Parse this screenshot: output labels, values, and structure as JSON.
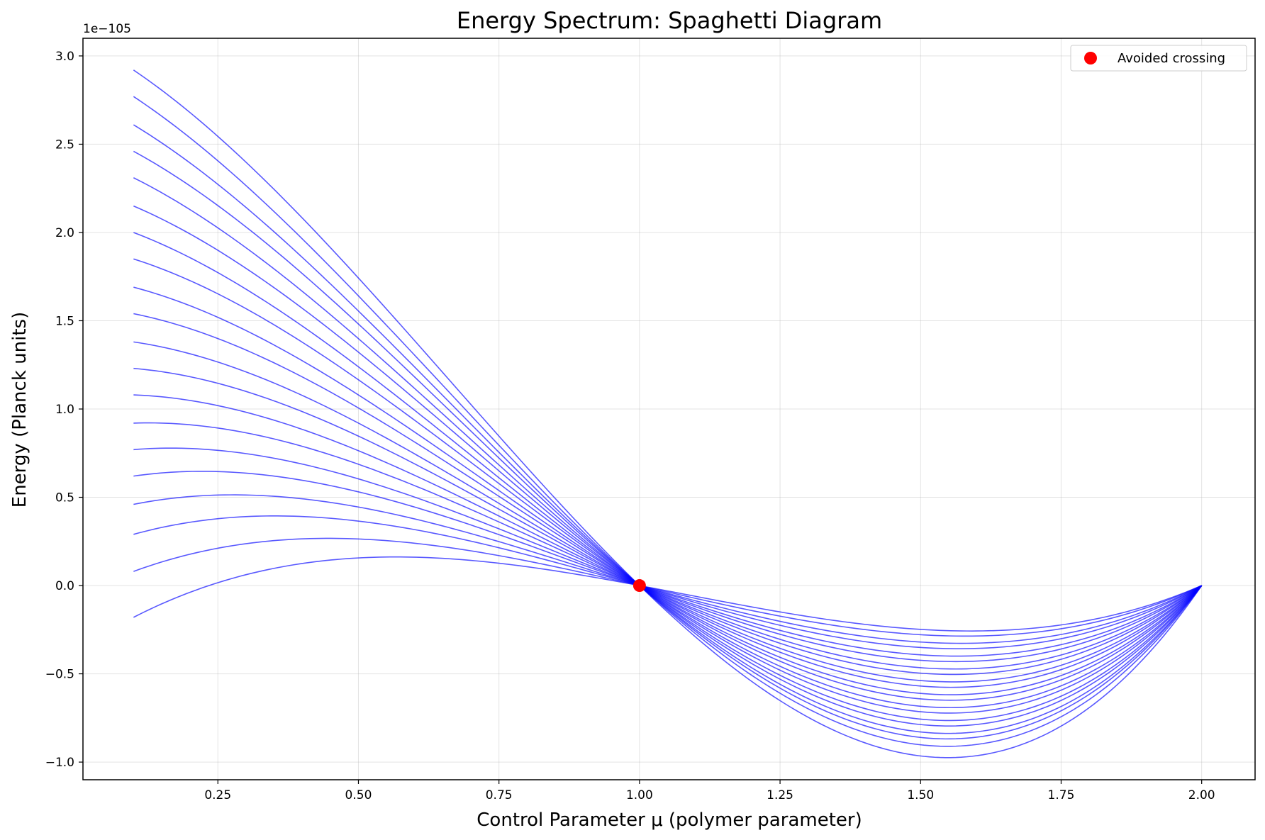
{
  "chart_data": {
    "type": "line",
    "title": "Energy Spectrum: Spaghetti Diagram",
    "xlabel": "Control Parameter μ (polymer parameter)",
    "ylabel": "Energy (Planck units)",
    "y_offset_label": "1e−105",
    "xlim": [
      0.01,
      2.095
    ],
    "ylim": [
      -1.1,
      3.1
    ],
    "x_ticks": [
      0.25,
      0.5,
      0.75,
      1.0,
      1.25,
      1.5,
      1.75,
      2.0
    ],
    "x_tick_labels": [
      "0.25",
      "0.50",
      "0.75",
      "1.00",
      "1.25",
      "1.50",
      "1.75",
      "2.00"
    ],
    "y_ticks": [
      -1.0,
      -0.5,
      0.0,
      0.5,
      1.0,
      1.5,
      2.0,
      2.5,
      3.0
    ],
    "y_tick_labels": [
      "−1.0",
      "−0.5",
      "0.0",
      "0.5",
      "1.0",
      "1.5",
      "2.0",
      "2.5",
      "3.0"
    ],
    "grid": true,
    "line_color": "#0000ff",
    "x_range": [
      0.1,
      2.0
    ],
    "curves": {
      "count": 20,
      "start_values_at_x_0_1": [
        -0.18,
        0.08,
        0.29,
        0.46,
        0.62,
        0.77,
        0.92,
        1.08,
        1.23,
        1.38,
        1.54,
        1.69,
        1.85,
        2.0,
        2.15,
        2.31,
        2.46,
        2.61,
        2.77,
        2.92
      ],
      "shared_points": [
        {
          "x": 1.0,
          "y": 0.0
        },
        {
          "x": 2.0,
          "y": 0.0
        }
      ],
      "minimum_x": 1.43,
      "minimum_values": [
        -0.23,
        -0.26,
        -0.3,
        -0.33,
        -0.37,
        -0.4,
        -0.44,
        -0.47,
        -0.51,
        -0.54,
        -0.58,
        -0.61,
        -0.65,
        -0.68,
        -0.72,
        -0.75,
        -0.79,
        -0.82,
        -0.86,
        -0.92
      ]
    },
    "markers": [
      {
        "x": 1.0,
        "y": 0.0,
        "color": "#ff0000",
        "label": "Avoided crossing"
      }
    ],
    "legend": {
      "placement": "top-right",
      "entries": [
        {
          "label": "Avoided crossing",
          "color": "#ff0000",
          "marker": "circle"
        }
      ]
    }
  }
}
